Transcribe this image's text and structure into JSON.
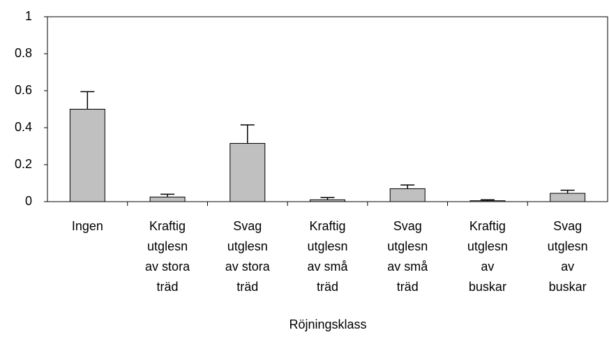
{
  "chart_data": {
    "type": "bar",
    "x_label": "Röjningsklass",
    "categories": [
      [
        "Ingen"
      ],
      [
        "Kraftig",
        "utglesn",
        "av stora",
        "träd"
      ],
      [
        "Svag",
        "utglesn",
        "av stora",
        "träd"
      ],
      [
        "Kraftig",
        "utglesn",
        "av små",
        "träd"
      ],
      [
        "Svag",
        "utglesn",
        "av små",
        "träd"
      ],
      [
        "Kraftig",
        "utglesn",
        "av",
        "buskar"
      ],
      [
        "Svag",
        "utglesn",
        "av",
        "buskar"
      ]
    ],
    "values": [
      0.5,
      0.025,
      0.315,
      0.01,
      0.07,
      0.005,
      0.045
    ],
    "errors": [
      0.095,
      0.015,
      0.1,
      0.012,
      0.02,
      0.005,
      0.017
    ],
    "color": "#c0c0c0",
    "ylim": [
      0,
      1
    ],
    "yticks": [
      0,
      0.2,
      0.4,
      0.6,
      0.8,
      1
    ],
    "grid": false
  }
}
